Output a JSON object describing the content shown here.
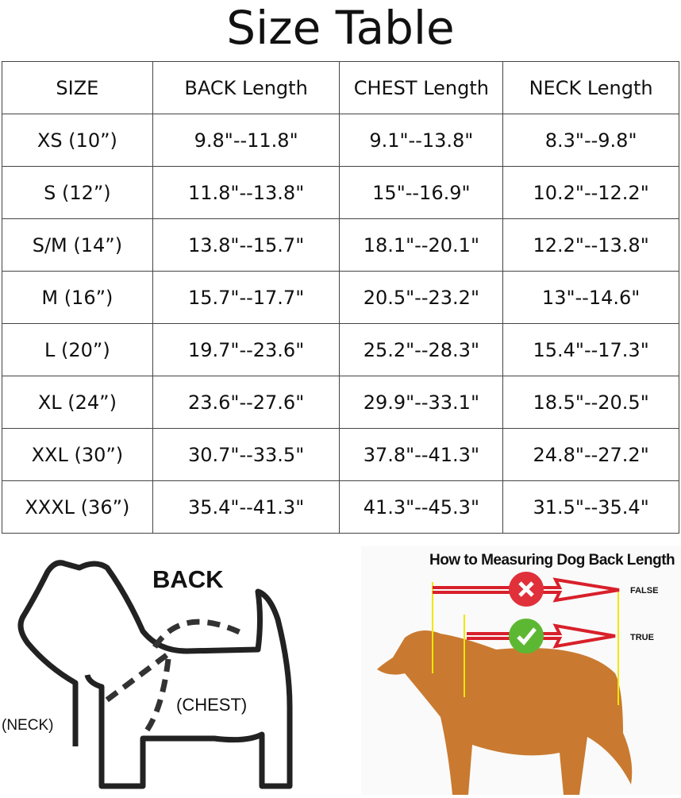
{
  "title": "Size Table",
  "table": {
    "headers": [
      "SIZE",
      "BACK Length",
      "CHEST Length",
      "NECK Length"
    ],
    "rows": [
      [
        "XS (10”)",
        "9.8\"--11.8\"",
        "9.1\"--13.8\"",
        "8.3\"--9.8\""
      ],
      [
        "S (12”)",
        "11.8\"--13.8\"",
        "15\"--16.9\"",
        "10.2\"--12.2\""
      ],
      [
        "S/M (14”)",
        "13.8\"--15.7\"",
        "18.1\"--20.1\"",
        "12.2\"--13.8\""
      ],
      [
        "M (16”)",
        "15.7\"--17.7\"",
        "20.5\"--23.2\"",
        "13\"--14.6\""
      ],
      [
        "L (20”)",
        "19.7\"--23.6\"",
        "25.2\"--28.3\"",
        "15.4\"--17.3\""
      ],
      [
        "XL (24”)",
        "23.6\"--27.6\"",
        "29.9\"--33.1\"",
        "18.5\"--20.5\""
      ],
      [
        "XXL (30”)",
        "30.7\"--33.5\"",
        "37.8\"--41.3\"",
        "24.8\"--27.2\""
      ],
      [
        "XXXL (36”)",
        "35.4\"--41.3\"",
        "41.3\"--45.3\"",
        "31.5\"--35.4\""
      ]
    ]
  },
  "sketch": {
    "back": "BACK",
    "chest": "(CHEST)",
    "neck": "(NECK)"
  },
  "photo": {
    "heading": "How to Measuring Dog Back Length",
    "false_label": "FALSE",
    "true_label": "TRUE",
    "colors": {
      "arrow": "#d8202a",
      "guide": "#f2e600",
      "dog": "#c97a30",
      "wrong": "#e0303a",
      "right": "#5cb832"
    }
  }
}
